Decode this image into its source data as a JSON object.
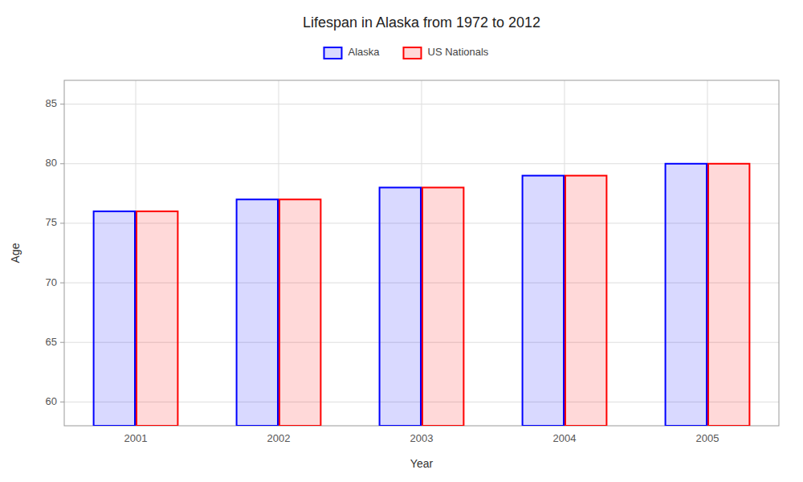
{
  "chart_data": {
    "type": "bar",
    "title": "Lifespan in Alaska from 1972 to 2012",
    "x_label": "Year",
    "y_label": "Age",
    "categories": [
      "2001",
      "2002",
      "2003",
      "2004",
      "2005"
    ],
    "series": [
      {
        "name": "Alaska",
        "color": "#0000ff",
        "values": [
          76,
          77,
          78,
          79,
          80
        ]
      },
      {
        "name": "US Nationals",
        "color": "#ff0000",
        "values": [
          76,
          77,
          78,
          79,
          80
        ]
      }
    ],
    "ylim": [
      58,
      87
    ],
    "yticks": [
      60,
      65,
      70,
      75,
      80,
      85
    ],
    "grid": true,
    "legend": "top"
  }
}
